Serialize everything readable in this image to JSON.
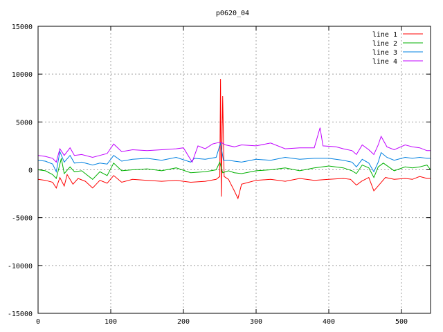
{
  "chart_data": {
    "type": "line",
    "title": "p0620_04",
    "xlabel": "",
    "ylabel": "",
    "xlim": [
      0,
      540
    ],
    "ylim": [
      -15000,
      15000
    ],
    "xticks": [
      0,
      100,
      200,
      300,
      400,
      500
    ],
    "yticks": [
      -15000,
      -10000,
      -5000,
      0,
      5000,
      10000,
      15000
    ],
    "grid": true,
    "legend_position": "top-right",
    "series": [
      {
        "name": "line 1",
        "color": "#ff0000",
        "points": [
          [
            0,
            -1000
          ],
          [
            10,
            -1100
          ],
          [
            20,
            -1300
          ],
          [
            25,
            -1900
          ],
          [
            30,
            -800
          ],
          [
            36,
            -1700
          ],
          [
            40,
            -500
          ],
          [
            48,
            -1500
          ],
          [
            55,
            -900
          ],
          [
            65,
            -1200
          ],
          [
            75,
            -1900
          ],
          [
            85,
            -1100
          ],
          [
            95,
            -1400
          ],
          [
            104,
            -600
          ],
          [
            115,
            -1300
          ],
          [
            130,
            -1000
          ],
          [
            150,
            -1100
          ],
          [
            170,
            -1200
          ],
          [
            190,
            -1100
          ],
          [
            210,
            -1300
          ],
          [
            230,
            -1200
          ],
          [
            245,
            -1000
          ],
          [
            250,
            -700
          ],
          [
            251,
            9500
          ],
          [
            252,
            -2800
          ],
          [
            254,
            7700
          ],
          [
            256,
            -700
          ],
          [
            262,
            -1000
          ],
          [
            270,
            -2200
          ],
          [
            275,
            -3000
          ],
          [
            280,
            -1500
          ],
          [
            290,
            -1300
          ],
          [
            300,
            -1100
          ],
          [
            320,
            -1000
          ],
          [
            340,
            -1200
          ],
          [
            360,
            -900
          ],
          [
            380,
            -1100
          ],
          [
            400,
            -1000
          ],
          [
            420,
            -900
          ],
          [
            430,
            -1000
          ],
          [
            438,
            -1600
          ],
          [
            445,
            -1200
          ],
          [
            455,
            -800
          ],
          [
            462,
            -2200
          ],
          [
            470,
            -1500
          ],
          [
            478,
            -800
          ],
          [
            490,
            -1000
          ],
          [
            505,
            -900
          ],
          [
            515,
            -1000
          ],
          [
            525,
            -700
          ],
          [
            535,
            -900
          ],
          [
            540,
            -900
          ]
        ]
      },
      {
        "name": "line 2",
        "color": "#00b000",
        "points": [
          [
            0,
            0
          ],
          [
            10,
            -100
          ],
          [
            20,
            -500
          ],
          [
            25,
            -900
          ],
          [
            32,
            1200
          ],
          [
            36,
            -400
          ],
          [
            44,
            300
          ],
          [
            50,
            -200
          ],
          [
            60,
            -100
          ],
          [
            75,
            -1000
          ],
          [
            85,
            -200
          ],
          [
            95,
            -600
          ],
          [
            104,
            700
          ],
          [
            115,
            -100
          ],
          [
            130,
            0
          ],
          [
            150,
            100
          ],
          [
            170,
            -100
          ],
          [
            190,
            200
          ],
          [
            210,
            -300
          ],
          [
            230,
            -200
          ],
          [
            245,
            0
          ],
          [
            250,
            800
          ],
          [
            254,
            -300
          ],
          [
            262,
            -100
          ],
          [
            270,
            -300
          ],
          [
            280,
            -400
          ],
          [
            300,
            -100
          ],
          [
            320,
            0
          ],
          [
            340,
            200
          ],
          [
            360,
            -100
          ],
          [
            380,
            200
          ],
          [
            400,
            400
          ],
          [
            420,
            200
          ],
          [
            432,
            -100
          ],
          [
            438,
            -400
          ],
          [
            446,
            500
          ],
          [
            455,
            200
          ],
          [
            462,
            -800
          ],
          [
            468,
            300
          ],
          [
            475,
            700
          ],
          [
            490,
            -100
          ],
          [
            505,
            300
          ],
          [
            515,
            200
          ],
          [
            525,
            300
          ],
          [
            535,
            500
          ],
          [
            540,
            0
          ]
        ]
      },
      {
        "name": "line 3",
        "color": "#0080e0",
        "points": [
          [
            0,
            1000
          ],
          [
            10,
            900
          ],
          [
            20,
            600
          ],
          [
            25,
            -200
          ],
          [
            30,
            1900
          ],
          [
            36,
            800
          ],
          [
            44,
            1500
          ],
          [
            50,
            700
          ],
          [
            60,
            800
          ],
          [
            75,
            500
          ],
          [
            85,
            700
          ],
          [
            95,
            600
          ],
          [
            104,
            1500
          ],
          [
            115,
            900
          ],
          [
            130,
            1100
          ],
          [
            150,
            1200
          ],
          [
            170,
            1000
          ],
          [
            190,
            1300
          ],
          [
            210,
            800
          ],
          [
            215,
            1200
          ],
          [
            230,
            1100
          ],
          [
            245,
            1300
          ],
          [
            251,
            2800
          ],
          [
            255,
            1000
          ],
          [
            262,
            1000
          ],
          [
            270,
            900
          ],
          [
            280,
            800
          ],
          [
            300,
            1100
          ],
          [
            320,
            1000
          ],
          [
            340,
            1300
          ],
          [
            360,
            1100
          ],
          [
            380,
            1200
          ],
          [
            400,
            1200
          ],
          [
            420,
            1000
          ],
          [
            432,
            800
          ],
          [
            438,
            300
          ],
          [
            446,
            1100
          ],
          [
            455,
            700
          ],
          [
            462,
            -200
          ],
          [
            468,
            800
          ],
          [
            472,
            1800
          ],
          [
            480,
            1300
          ],
          [
            490,
            1000
          ],
          [
            505,
            1300
          ],
          [
            515,
            1200
          ],
          [
            525,
            1300
          ],
          [
            535,
            1200
          ],
          [
            540,
            1200
          ]
        ]
      },
      {
        "name": "line 4",
        "color": "#c000ff",
        "points": [
          [
            0,
            1500
          ],
          [
            10,
            1400
          ],
          [
            20,
            1200
          ],
          [
            25,
            800
          ],
          [
            30,
            2200
          ],
          [
            36,
            1500
          ],
          [
            44,
            2300
          ],
          [
            50,
            1500
          ],
          [
            60,
            1600
          ],
          [
            75,
            1300
          ],
          [
            85,
            1500
          ],
          [
            95,
            1700
          ],
          [
            104,
            2700
          ],
          [
            115,
            1900
          ],
          [
            130,
            2100
          ],
          [
            150,
            2000
          ],
          [
            170,
            2100
          ],
          [
            190,
            2200
          ],
          [
            200,
            2300
          ],
          [
            212,
            800
          ],
          [
            220,
            2500
          ],
          [
            230,
            2200
          ],
          [
            240,
            2700
          ],
          [
            251,
            2900
          ],
          [
            258,
            2600
          ],
          [
            270,
            2400
          ],
          [
            280,
            2600
          ],
          [
            300,
            2500
          ],
          [
            320,
            2800
          ],
          [
            340,
            2200
          ],
          [
            360,
            2300
          ],
          [
            380,
            2300
          ],
          [
            388,
            4400
          ],
          [
            392,
            2500
          ],
          [
            410,
            2400
          ],
          [
            420,
            2200
          ],
          [
            432,
            2000
          ],
          [
            438,
            1600
          ],
          [
            446,
            2600
          ],
          [
            455,
            2100
          ],
          [
            462,
            1600
          ],
          [
            468,
            2600
          ],
          [
            472,
            3500
          ],
          [
            480,
            2400
          ],
          [
            490,
            2100
          ],
          [
            505,
            2600
          ],
          [
            515,
            2400
          ],
          [
            525,
            2300
          ],
          [
            535,
            2000
          ],
          [
            540,
            2000
          ]
        ]
      }
    ]
  }
}
